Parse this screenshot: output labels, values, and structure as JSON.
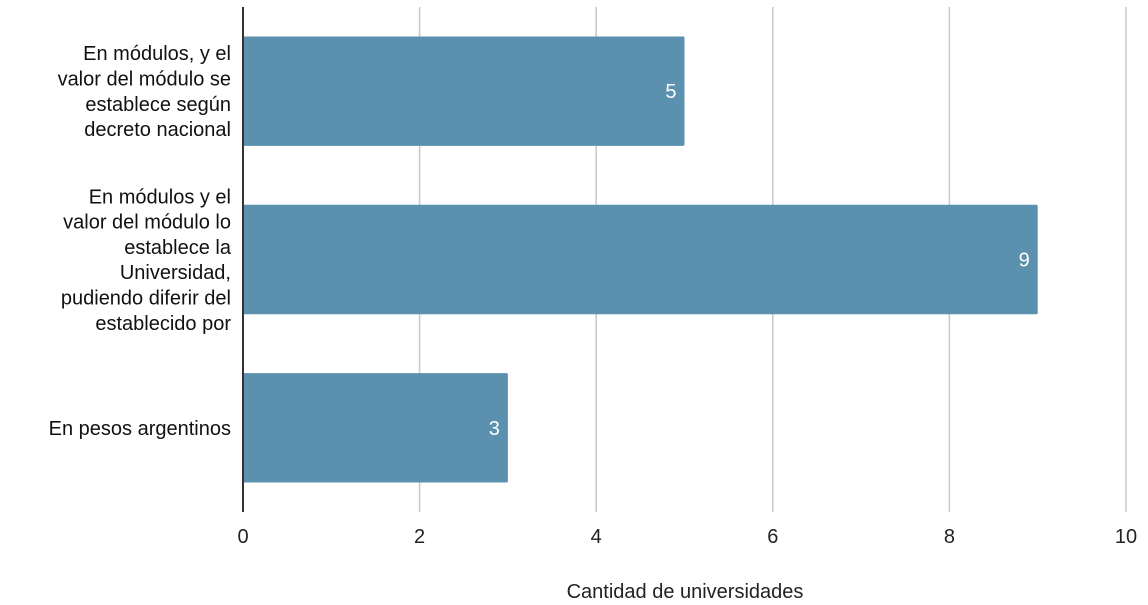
{
  "chart_data": {
    "type": "bar",
    "orientation": "horizontal",
    "categories": [
      [
        "En módulos, y el",
        "valor del módulo se",
        "establece según",
        "decreto nacional"
      ],
      [
        "En módulos y el",
        "valor del módulo lo",
        "establece la",
        "Universidad,",
        "pudiendo diferir del",
        "establecido por"
      ],
      [
        "En pesos argentinos"
      ]
    ],
    "values": [
      5,
      9,
      3
    ],
    "data_labels": [
      "5",
      "9",
      "3"
    ],
    "xlabel": "Cantidad de universidades",
    "ylabel": "",
    "xlim": [
      0,
      10
    ],
    "xticks": [
      0,
      2,
      4,
      6,
      8,
      10
    ],
    "xtick_labels": [
      "0",
      "2",
      "4",
      "6",
      "8",
      "10"
    ],
    "grid": "vertical",
    "legend": "none",
    "colors": {
      "bar": "#5b91ae",
      "grid": "#c8c8c8",
      "axis": "#333333"
    }
  }
}
